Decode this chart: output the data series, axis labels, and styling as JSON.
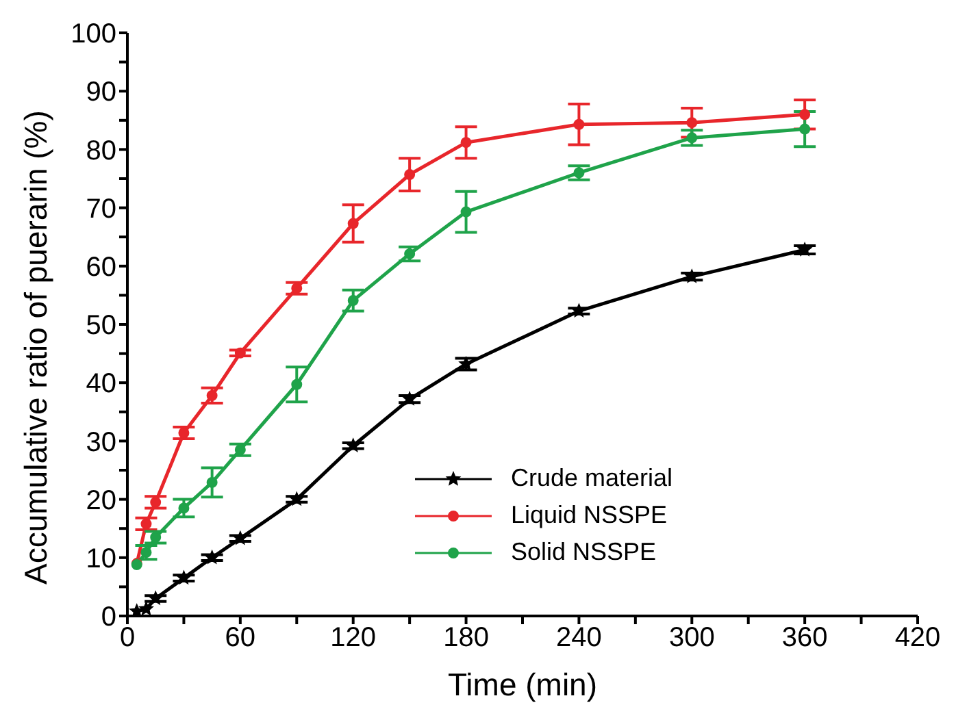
{
  "chart_data": {
    "type": "line",
    "xlabel": "Time (min)",
    "ylabel": "Accumulative ratio of puerarin (%)",
    "x": [
      5,
      10,
      15,
      30,
      45,
      60,
      90,
      120,
      150,
      180,
      240,
      300,
      360
    ],
    "series": [
      {
        "name": "Crude material",
        "color": "#000000",
        "marker": "star",
        "values": [
          0.8,
          1.2,
          3.0,
          6.5,
          10.0,
          13.3,
          20.0,
          29.2,
          37.2,
          43.2,
          52.3,
          58.2,
          62.8
        ],
        "errors": [
          null,
          null,
          0.5,
          0.5,
          0.5,
          0.5,
          0.5,
          0.5,
          0.6,
          1.0,
          0.5,
          0.6,
          0.7
        ]
      },
      {
        "name": "Liquid NSSPE",
        "color": "#e8262b",
        "marker": "circle",
        "values": [
          9.0,
          15.8,
          19.5,
          31.4,
          37.8,
          45.1,
          56.2,
          67.3,
          75.7,
          81.2,
          84.3,
          84.6,
          86.0
        ],
        "errors": [
          null,
          1.0,
          1.0,
          1.0,
          1.3,
          0.5,
          1.0,
          3.2,
          2.8,
          2.7,
          3.5,
          2.5,
          2.5
        ]
      },
      {
        "name": "Solid NSSPE",
        "color": "#1fa34a",
        "marker": "circle",
        "values": [
          8.8,
          10.9,
          13.5,
          18.5,
          22.9,
          28.5,
          39.7,
          54.1,
          62.1,
          69.3,
          76.0,
          82.0,
          83.5
        ],
        "errors": [
          null,
          1.2,
          1.0,
          1.5,
          2.5,
          1.0,
          3.0,
          1.8,
          1.2,
          3.5,
          1.2,
          1.3,
          3.0
        ]
      }
    ],
    "xlim": [
      0,
      420
    ],
    "xticks": [
      0,
      {
        "value": 30,
        "label": null
      },
      60,
      {
        "value": 90,
        "label": null
      },
      120,
      {
        "value": 150,
        "label": null
      },
      180,
      {
        "value": 210,
        "label": null
      },
      240,
      {
        "value": 270,
        "label": null
      },
      300,
      {
        "value": 330,
        "label": null
      },
      360,
      {
        "value": 390,
        "label": null
      },
      420
    ],
    "ylim": [
      0,
      100
    ],
    "yticks": [
      0,
      {
        "value": 5,
        "label": null
      },
      10,
      {
        "value": 15,
        "label": null
      },
      20,
      {
        "value": 25,
        "label": null
      },
      30,
      {
        "value": 35,
        "label": null
      },
      40,
      {
        "value": 45,
        "label": null
      },
      50,
      {
        "value": 55,
        "label": null
      },
      60,
      {
        "value": 65,
        "label": null
      },
      70,
      {
        "value": 75,
        "label": null
      },
      80,
      {
        "value": 85,
        "label": null
      },
      90,
      {
        "value": 95,
        "label": null
      },
      100
    ],
    "legend": "bottom right",
    "grid": false
  }
}
